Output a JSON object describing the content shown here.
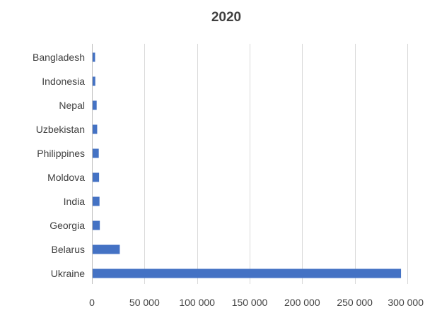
{
  "chart_data": {
    "type": "bar",
    "orientation": "horizontal",
    "title": "2020",
    "xlabel": "",
    "ylabel": "",
    "categories": [
      "Bangladesh",
      "Indonesia",
      "Nepal",
      "Uzbekistan",
      "Philippines",
      "Moldova",
      "India",
      "Georgia",
      "Belarus",
      "Ukraine"
    ],
    "values": [
      3000,
      3200,
      4500,
      5000,
      6500,
      6800,
      7200,
      7500,
      26500,
      294000
    ],
    "xlim": [
      0,
      300000
    ],
    "x_ticks": [
      0,
      50000,
      100000,
      150000,
      200000,
      250000,
      300000
    ],
    "x_tick_labels": [
      "0",
      "50 000",
      "100 000",
      "150 000",
      "200 000",
      "250 000",
      "300 000"
    ],
    "grid": "vertical",
    "legend": "none",
    "bar_color": "#4472c4"
  }
}
